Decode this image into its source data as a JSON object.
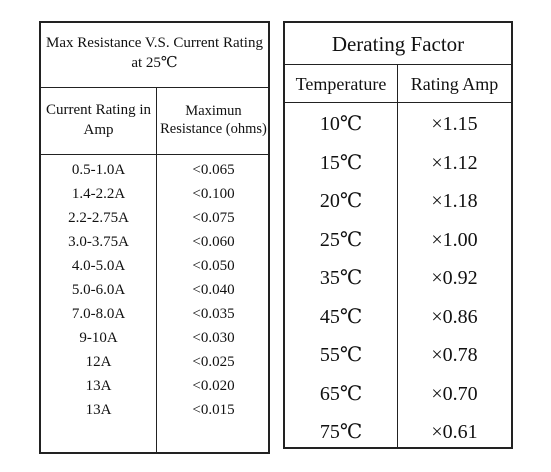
{
  "resistance_table": {
    "title": "Max Resistance V.S. Current Rating at 25℃",
    "headers": {
      "current": "Current Rating in Amp",
      "resistance": "Maximun Resistance (ohms)"
    },
    "rows": [
      {
        "current": "0.5-1.0A",
        "resistance": "<0.065"
      },
      {
        "current": "1.4-2.2A",
        "resistance": "<0.100"
      },
      {
        "current": "2.2-2.75A",
        "resistance": "<0.075"
      },
      {
        "current": "3.0-3.75A",
        "resistance": "<0.060"
      },
      {
        "current": "4.0-5.0A",
        "resistance": "<0.050"
      },
      {
        "current": "5.0-6.0A",
        "resistance": "<0.040"
      },
      {
        "current": "7.0-8.0A",
        "resistance": "<0.035"
      },
      {
        "current": "9-10A",
        "resistance": "<0.030"
      },
      {
        "current": "12A",
        "resistance": "<0.025"
      },
      {
        "current": "13A",
        "resistance": "<0.020"
      },
      {
        "current": "13A",
        "resistance": "<0.015"
      }
    ]
  },
  "derating_table": {
    "title": "Derating Factor",
    "headers": {
      "temperature": "Temperature",
      "rating": "Rating Amp"
    },
    "rows": [
      {
        "temperature": "10℃",
        "rating": "×1.15"
      },
      {
        "temperature": "15℃",
        "rating": "×1.12"
      },
      {
        "temperature": "20℃",
        "rating": "×1.18"
      },
      {
        "temperature": "25℃",
        "rating": "×1.00"
      },
      {
        "temperature": "35℃",
        "rating": "×0.92"
      },
      {
        "temperature": "45℃",
        "rating": "×0.86"
      },
      {
        "temperature": "55℃",
        "rating": "×0.78"
      },
      {
        "temperature": "65℃",
        "rating": "×0.70"
      },
      {
        "temperature": "75℃",
        "rating": "×0.61"
      }
    ]
  }
}
